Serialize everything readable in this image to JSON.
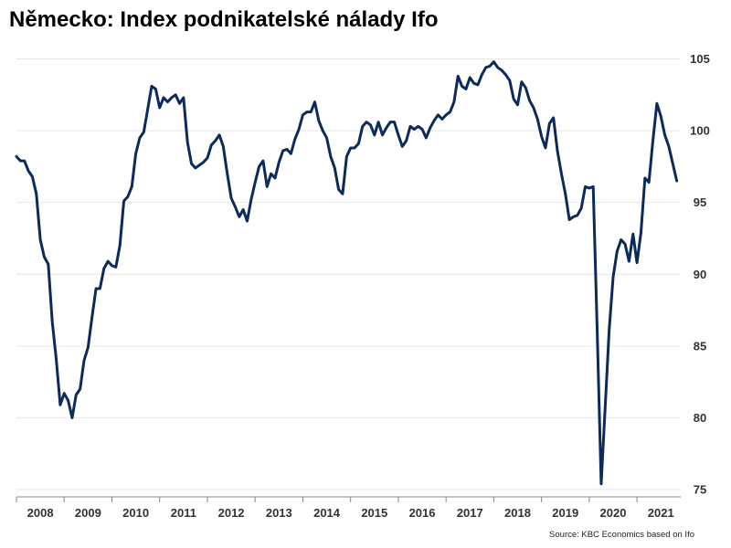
{
  "title": "Německo: Index podnikatelské nálady Ifo",
  "source": "Source: KBC Economics based on Ifo",
  "colors": {
    "line": "#0c2a5a",
    "grid": "#e6e6e6",
    "axis": "#888888"
  },
  "chart_data": {
    "type": "line",
    "title": "Německo: Index podnikatelské nálady Ifo",
    "xlabel": "",
    "ylabel": "",
    "x_range": [
      2008.0,
      2021.9167
    ],
    "ylim": [
      75,
      105
    ],
    "yticks": [
      75,
      80,
      85,
      90,
      95,
      100,
      105
    ],
    "ytick_labels": [
      "75",
      "80",
      "85",
      "90",
      "95",
      "100",
      "105"
    ],
    "y_axis_position": "right",
    "xticks": [
      "2008",
      "2009",
      "2010",
      "2011",
      "2012",
      "2013",
      "2014",
      "2015",
      "2016",
      "2017",
      "2018",
      "2019",
      "2020",
      "2021"
    ],
    "grid": true,
    "legend": "none",
    "series": [
      {
        "color": "#0c2a5a",
        "x": [
          2008.0,
          2008.083,
          2008.167,
          2008.25,
          2008.333,
          2008.417,
          2008.5,
          2008.583,
          2008.667,
          2008.75,
          2008.833,
          2008.917,
          2009.0,
          2009.083,
          2009.167,
          2009.25,
          2009.333,
          2009.417,
          2009.5,
          2009.583,
          2009.667,
          2009.75,
          2009.833,
          2009.917,
          2010.0,
          2010.083,
          2010.167,
          2010.25,
          2010.333,
          2010.417,
          2010.5,
          2010.583,
          2010.667,
          2010.75,
          2010.833,
          2010.917,
          2011.0,
          2011.083,
          2011.167,
          2011.25,
          2011.333,
          2011.417,
          2011.5,
          2011.583,
          2011.667,
          2011.75,
          2011.833,
          2011.917,
          2012.0,
          2012.083,
          2012.167,
          2012.25,
          2012.333,
          2012.417,
          2012.5,
          2012.583,
          2012.667,
          2012.75,
          2012.833,
          2012.917,
          2013.0,
          2013.083,
          2013.167,
          2013.25,
          2013.333,
          2013.417,
          2013.5,
          2013.583,
          2013.667,
          2013.75,
          2013.833,
          2013.917,
          2014.0,
          2014.083,
          2014.167,
          2014.25,
          2014.333,
          2014.417,
          2014.5,
          2014.583,
          2014.667,
          2014.75,
          2014.833,
          2014.917,
          2015.0,
          2015.083,
          2015.167,
          2015.25,
          2015.333,
          2015.417,
          2015.5,
          2015.583,
          2015.667,
          2015.75,
          2015.833,
          2015.917,
          2016.0,
          2016.083,
          2016.167,
          2016.25,
          2016.333,
          2016.417,
          2016.5,
          2016.583,
          2016.667,
          2016.75,
          2016.833,
          2016.917,
          2017.0,
          2017.083,
          2017.167,
          2017.25,
          2017.333,
          2017.417,
          2017.5,
          2017.583,
          2017.667,
          2017.75,
          2017.833,
          2017.917,
          2018.0,
          2018.083,
          2018.167,
          2018.25,
          2018.333,
          2018.417,
          2018.5,
          2018.583,
          2018.667,
          2018.75,
          2018.833,
          2018.917,
          2019.0,
          2019.083,
          2019.167,
          2019.25,
          2019.333,
          2019.417,
          2019.5,
          2019.583,
          2019.667,
          2019.75,
          2019.833,
          2019.917,
          2020.0,
          2020.083,
          2020.167,
          2020.25,
          2020.333,
          2020.417,
          2020.5,
          2020.583,
          2020.667,
          2020.75,
          2020.833,
          2020.917,
          2021.0,
          2021.083,
          2021.167,
          2021.25,
          2021.333,
          2021.417,
          2021.5,
          2021.583,
          2021.667,
          2021.75,
          2021.833
        ],
        "y": [
          98.2,
          97.9,
          97.9,
          97.2,
          96.8,
          95.6,
          92.4,
          91.2,
          90.7,
          86.7,
          84.1,
          80.9,
          81.7,
          81.2,
          80.0,
          81.6,
          82.0,
          84.0,
          84.9,
          87.0,
          89.0,
          89.0,
          90.4,
          90.9,
          90.6,
          90.5,
          92.0,
          95.1,
          95.4,
          96.1,
          98.4,
          99.5,
          99.9,
          101.5,
          103.1,
          102.9,
          101.6,
          102.3,
          102.0,
          102.3,
          102.5,
          101.9,
          102.3,
          99.2,
          97.7,
          97.4,
          97.6,
          97.8,
          98.1,
          99.0,
          99.3,
          99.7,
          98.9,
          97.0,
          95.3,
          94.7,
          94.0,
          94.5,
          93.7,
          95.2,
          96.4,
          97.5,
          97.9,
          96.1,
          97.0,
          96.7,
          97.8,
          98.6,
          98.7,
          98.4,
          99.4,
          100.1,
          101.1,
          101.3,
          101.3,
          102.0,
          100.7,
          100.0,
          99.5,
          98.2,
          97.4,
          95.9,
          95.6,
          98.2,
          98.8,
          98.8,
          99.1,
          100.3,
          100.6,
          100.4,
          99.7,
          100.6,
          99.7,
          100.2,
          100.6,
          100.6,
          99.7,
          98.9,
          99.3,
          100.3,
          100.1,
          100.3,
          100.1,
          99.5,
          100.2,
          100.7,
          101.1,
          100.8,
          101.1,
          101.3,
          102.0,
          103.8,
          103.1,
          102.9,
          103.7,
          103.3,
          103.2,
          103.9,
          104.4,
          104.5,
          104.8,
          104.4,
          104.2,
          103.9,
          103.5,
          102.2,
          101.8,
          103.4,
          103.0,
          102.1,
          101.6,
          100.8,
          99.6,
          98.8,
          100.5,
          100.9,
          98.6,
          97.0,
          95.6,
          93.8,
          94.0,
          94.1,
          94.6,
          96.1,
          96.0,
          96.1,
          86.0,
          75.4,
          80.7,
          86.1,
          89.8,
          91.6,
          92.4,
          92.1,
          90.9,
          92.8,
          90.8,
          92.9,
          96.7,
          96.4,
          99.3,
          101.9,
          101.0,
          99.7,
          98.9,
          97.7,
          96.5
        ]
      }
    ]
  }
}
